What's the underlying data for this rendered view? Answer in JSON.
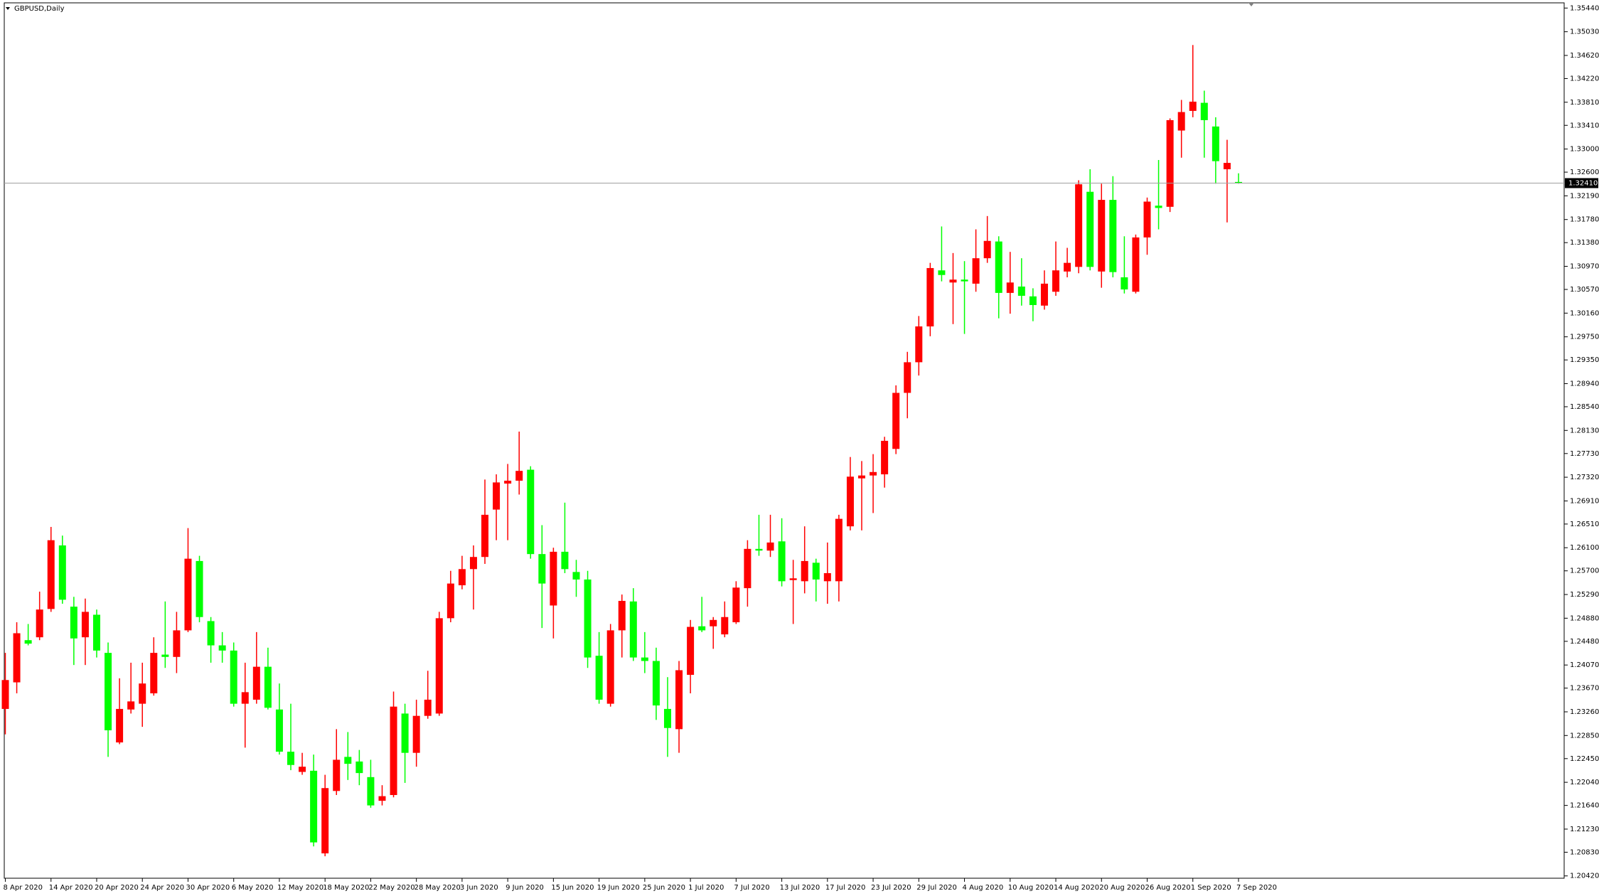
{
  "chart_data": {
    "type": "candlestick",
    "title": "GBPUSD,Daily",
    "categories": [
      "8 Apr 2020",
      null,
      null,
      null,
      "14 Apr 2020",
      null,
      null,
      null,
      "20 Apr 2020",
      null,
      null,
      null,
      "24 Apr 2020",
      null,
      null,
      null,
      "30 Apr 2020",
      null,
      null,
      null,
      "6 May 2020",
      null,
      null,
      null,
      "12 May 2020",
      null,
      null,
      null,
      "18 May 2020",
      null,
      null,
      null,
      "22 May 2020",
      null,
      null,
      null,
      "28 May 2020",
      null,
      null,
      null,
      "3 Jun 2020",
      null,
      null,
      null,
      "9 Jun 2020",
      null,
      null,
      null,
      "15 Jun 2020",
      null,
      null,
      null,
      "19 Jun 2020",
      null,
      null,
      null,
      "25 Jun 2020",
      null,
      null,
      null,
      "1 Jul 2020",
      null,
      null,
      null,
      "7 Jul 2020",
      null,
      null,
      null,
      "13 Jul 2020",
      null,
      null,
      null,
      "17 Jul 2020",
      null,
      null,
      null,
      "23 Jul 2020",
      null,
      null,
      null,
      "29 Jul 2020",
      null,
      null,
      null,
      "4 Aug 2020",
      null,
      null,
      null,
      "10 Aug 2020",
      null,
      null,
      null,
      "14 Aug 2020",
      null,
      null,
      null,
      "20 Aug 2020",
      null,
      null,
      null,
      "26 Aug 2020",
      null,
      null,
      null,
      "1 Sep 2020",
      null,
      null,
      null,
      "7 Sep 2020"
    ],
    "open": [
      1.2331,
      1.2377,
      1.245,
      1.2455,
      1.2504,
      1.2614,
      1.2508,
      1.2455,
      1.2494,
      1.2428,
      1.2273,
      1.233,
      1.234,
      1.2358,
      1.2425,
      1.2421,
      1.2467,
      1.2587,
      1.2483,
      1.2441,
      1.2432,
      1.234,
      1.2347,
      1.2404,
      1.233,
      1.2257,
      1.2222,
      1.2224,
      1.2081,
      1.2189,
      1.2248,
      1.224,
      1.2213,
      1.2172,
      1.2182,
      1.2323,
      1.2255,
      1.2319,
      1.2323,
      1.2488,
      1.2545,
      1.2573,
      1.2594,
      1.2676,
      1.2721,
      1.2726,
      1.2745,
      1.2599,
      1.251,
      1.2603,
      1.2568,
      1.2555,
      1.2423,
      1.234,
      1.2467,
      1.2517,
      1.242,
      1.2414,
      1.2331,
      1.2296,
      1.239,
      1.2474,
      1.2474,
      1.246,
      1.2481,
      1.254,
      1.2608,
      1.2605,
      1.2621,
      1.2554,
      1.2552,
      1.2584,
      1.2552,
      1.2552,
      1.2647,
      1.273,
      1.2735,
      1.2737,
      1.2781,
      1.2878,
      1.2931,
      1.2993,
      1.309,
      1.3069,
      1.3074,
      1.3067,
      1.3111,
      1.314,
      1.3051,
      1.3062,
      1.3045,
      1.3029,
      1.3053,
      1.3088,
      1.3096,
      1.3226,
      1.3088,
      1.3212,
      1.3078,
      1.3053,
      1.3147,
      1.3202,
      1.32,
      1.3332,
      1.3366,
      1.338,
      1.3339,
      1.3265,
      1.3243
    ],
    "high": [
      1.2428,
      1.2481,
      1.2478,
      1.2534,
      1.2646,
      1.2631,
      1.2525,
      1.2522,
      1.2503,
      1.2446,
      1.2384,
      1.2411,
      1.2411,
      1.2455,
      1.2517,
      1.2499,
      1.2644,
      1.2596,
      1.249,
      1.2464,
      1.2446,
      1.2411,
      1.2464,
      1.2437,
      1.2375,
      1.234,
      1.2255,
      1.2252,
      1.2217,
      1.2296,
      1.2291,
      1.226,
      1.2243,
      1.2199,
      1.2361,
      1.234,
      1.2347,
      1.2397,
      1.2499,
      1.257,
      1.2596,
      1.2614,
      1.2728,
      1.2737,
      1.2755,
      1.2811,
      1.2751,
      1.2649,
      1.261,
      1.2688,
      1.2589,
      1.257,
      1.2464,
      1.2478,
      1.2529,
      1.254,
      1.2464,
      1.2437,
      1.2386,
      1.2414,
      1.2485,
      1.2525,
      1.249,
      1.2517,
      1.2552,
      1.2623,
      1.2667,
      1.2667,
      1.2661,
      1.2589,
      1.2647,
      1.2591,
      1.2619,
      1.2667,
      1.2767,
      1.276,
      1.2772,
      1.2802,
      1.2891,
      1.2949,
      1.3011,
      1.3103,
      1.3166,
      1.312,
      1.3106,
      1.3161,
      1.3184,
      1.3149,
      1.3122,
      1.3111,
      1.3059,
      1.309,
      1.314,
      1.3129,
      1.3246,
      1.3265,
      1.324,
      1.3253,
      1.3149,
      1.3152,
      1.3216,
      1.3281,
      1.3353,
      1.3385,
      1.348,
      1.3401,
      1.3355,
      1.3316,
      1.3258
    ],
    "low": [
      1.2287,
      1.2358,
      1.2441,
      1.245,
      1.2499,
      1.2513,
      1.2407,
      1.2407,
      1.242,
      1.2248,
      1.227,
      1.2323,
      1.23,
      1.2354,
      1.2402,
      1.2393,
      1.2464,
      1.2481,
      1.2411,
      1.2411,
      1.2335,
      1.2264,
      1.234,
      1.233,
      1.2252,
      1.2225,
      1.2217,
      1.2093,
      1.2076,
      1.2182,
      1.2208,
      1.2199,
      1.216,
      1.2164,
      1.2178,
      1.2203,
      1.2231,
      1.2314,
      1.2319,
      1.2481,
      1.2538,
      1.2503,
      1.2582,
      1.2623,
      1.2623,
      1.2702,
      1.2591,
      1.2471,
      1.2453,
      1.2566,
      1.2525,
      1.2402,
      1.234,
      1.2335,
      1.242,
      1.2414,
      1.2393,
      1.2312,
      1.2248,
      1.2255,
      1.2358,
      1.2464,
      1.2435,
      1.2455,
      1.2478,
      1.2508,
      1.2596,
      1.2594,
      1.2543,
      1.2478,
      1.2531,
      1.2517,
      1.2513,
      1.2517,
      1.264,
      1.264,
      1.267,
      1.2714,
      1.2772,
      1.2834,
      1.2908,
      1.2976,
      1.3071,
      1.2997,
      1.298,
      1.3053,
      1.3103,
      1.3007,
      1.3015,
      1.3029,
      1.3002,
      1.3022,
      1.3046,
      1.3078,
      1.3085,
      1.309,
      1.306,
      1.3078,
      1.305,
      1.305,
      1.3117,
      1.3161,
      1.3191,
      1.3285,
      1.3355,
      1.3285,
      1.324,
      1.3173,
      1.324
    ],
    "close": [
      1.2381,
      1.2462,
      1.2444,
      1.2503,
      1.2623,
      1.252,
      1.2453,
      1.2499,
      1.2432,
      1.2294,
      1.2331,
      1.2344,
      1.2375,
      1.2428,
      1.2421,
      1.2467,
      1.2591,
      1.249,
      1.2441,
      1.2432,
      1.234,
      1.236,
      1.2404,
      1.2333,
      1.2257,
      1.2234,
      1.2231,
      1.21,
      1.2194,
      1.2243,
      1.2236,
      1.222,
      1.2164,
      1.218,
      1.2335,
      1.2255,
      1.2319,
      1.2347,
      1.2488,
      1.2548,
      1.2573,
      1.2594,
      1.2667,
      1.2723,
      1.2726,
      1.2743,
      1.2599,
      1.2548,
      1.2603,
      1.2573,
      1.2555,
      1.242,
      1.2347,
      1.2467,
      1.2518,
      1.242,
      1.2414,
      1.2337,
      1.2298,
      1.2398,
      1.2473,
      1.2467,
      1.2485,
      1.249,
      1.2541,
      1.2608,
      1.2605,
      1.2619,
      1.2552,
      1.2557,
      1.2587,
      1.2555,
      1.2566,
      1.266,
      1.2733,
      1.2735,
      1.2741,
      1.2795,
      1.2878,
      1.2931,
      1.2993,
      1.3094,
      1.3082,
      1.3074,
      1.3071,
      1.3111,
      1.3141,
      1.3051,
      1.3069,
      1.3046,
      1.303,
      1.3067,
      1.309,
      1.3103,
      1.3239,
      1.3096,
      1.3212,
      1.3087,
      1.3057,
      1.3147,
      1.3209,
      1.3198,
      1.335,
      1.3364,
      1.3382,
      1.335,
      1.3279,
      1.3276,
      1.3241
    ],
    "colors": {
      "up": "#ff0000",
      "down": "#00ff00"
    },
    "current_price": {
      "value": 1.3241,
      "label": "1.32410"
    },
    "ylim": [
      1.2038,
      1.3553
    ],
    "yticks": [
      {
        "value": 1.3544,
        "label": "1.35440"
      },
      {
        "value": 1.3503,
        "label": "1.35030"
      },
      {
        "value": 1.3462,
        "label": "1.34620"
      },
      {
        "value": 1.3422,
        "label": "1.34220"
      },
      {
        "value": 1.3381,
        "label": "1.33810"
      },
      {
        "value": 1.3341,
        "label": "1.33410"
      },
      {
        "value": 1.33,
        "label": "1.33000"
      },
      {
        "value": 1.326,
        "label": "1.32600"
      },
      {
        "value": 1.3219,
        "label": "1.32190"
      },
      {
        "value": 1.3178,
        "label": "1.31780"
      },
      {
        "value": 1.3138,
        "label": "1.31380"
      },
      {
        "value": 1.3097,
        "label": "1.30970"
      },
      {
        "value": 1.3057,
        "label": "1.30570"
      },
      {
        "value": 1.3016,
        "label": "1.30160"
      },
      {
        "value": 1.2975,
        "label": "1.29750"
      },
      {
        "value": 1.2935,
        "label": "1.29350"
      },
      {
        "value": 1.2894,
        "label": "1.28940"
      },
      {
        "value": 1.2854,
        "label": "1.28540"
      },
      {
        "value": 1.2813,
        "label": "1.28130"
      },
      {
        "value": 1.2773,
        "label": "1.27730"
      },
      {
        "value": 1.2732,
        "label": "1.27320"
      },
      {
        "value": 1.2691,
        "label": "1.26910"
      },
      {
        "value": 1.2651,
        "label": "1.26510"
      },
      {
        "value": 1.261,
        "label": "1.26100"
      },
      {
        "value": 1.257,
        "label": "1.25700"
      },
      {
        "value": 1.2529,
        "label": "1.25290"
      },
      {
        "value": 1.2488,
        "label": "1.24880"
      },
      {
        "value": 1.2448,
        "label": "1.24480"
      },
      {
        "value": 1.2407,
        "label": "1.24070"
      },
      {
        "value": 1.2367,
        "label": "1.23670"
      },
      {
        "value": 1.2326,
        "label": "1.23260"
      },
      {
        "value": 1.2285,
        "label": "1.22850"
      },
      {
        "value": 1.2245,
        "label": "1.22450"
      },
      {
        "value": 1.2204,
        "label": "1.22040"
      },
      {
        "value": 1.2164,
        "label": "1.21640"
      },
      {
        "value": 1.2123,
        "label": "1.21230"
      },
      {
        "value": 1.2083,
        "label": "1.20830"
      },
      {
        "value": 1.2042,
        "label": "1.20420"
      }
    ]
  }
}
